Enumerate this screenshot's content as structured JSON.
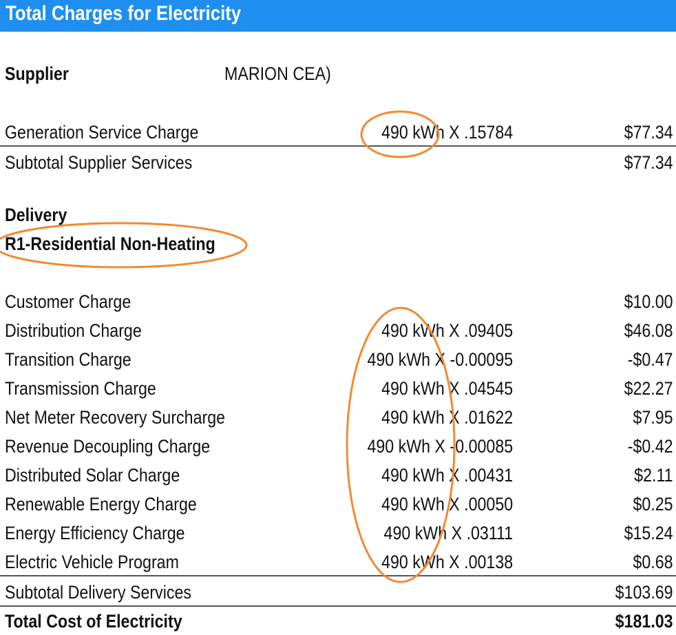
{
  "title": "Total Charges for Electricity",
  "supplier": {
    "label": "Supplier",
    "value": "MARION CEA)"
  },
  "generation": {
    "label": "Generation Service Charge",
    "rate": "490 kWh X .15784",
    "amount": "$77.34"
  },
  "subtotal_supplier": {
    "label": "Subtotal Supplier Services",
    "amount": "$77.34"
  },
  "delivery": {
    "heading": "Delivery",
    "rate_class": "R1-Residential Non-Heating"
  },
  "delivery_rows": [
    {
      "label": "Customer Charge",
      "rate": "",
      "amount": "$10.00"
    },
    {
      "label": "Distribution Charge",
      "rate": "490 kWh X .09405",
      "amount": "$46.08"
    },
    {
      "label": "Transition Charge",
      "rate": "490 kWh X -0.00095",
      "amount": "-$0.47"
    },
    {
      "label": "Transmission Charge",
      "rate": "490 kWh X .04545",
      "amount": "$22.27"
    },
    {
      "label": "Net Meter Recovery Surcharge",
      "rate": "490 kWh X .01622",
      "amount": "$7.95"
    },
    {
      "label": "Revenue Decoupling Charge",
      "rate": "490 kWh X -0.00085",
      "amount": "-$0.42"
    },
    {
      "label": "Distributed Solar Charge",
      "rate": "490 kWh X .00431",
      "amount": "$2.11"
    },
    {
      "label": "Renewable Energy Charge",
      "rate": "490 kWh X .00050",
      "amount": "$0.25"
    },
    {
      "label": "Energy Efficiency Charge",
      "rate": "490 kWh X .03111",
      "amount": "$15.24"
    },
    {
      "label": "Electric Vehicle Program",
      "rate": "490 kWh X .00138",
      "amount": "$0.68"
    }
  ],
  "subtotal_delivery": {
    "label": "Subtotal Delivery Services",
    "amount": "$103.69"
  },
  "total": {
    "label": "Total Cost of Electricity",
    "amount": "$181.03"
  },
  "colors": {
    "header": "#1e8ff0",
    "annotation": "#f08a33"
  }
}
